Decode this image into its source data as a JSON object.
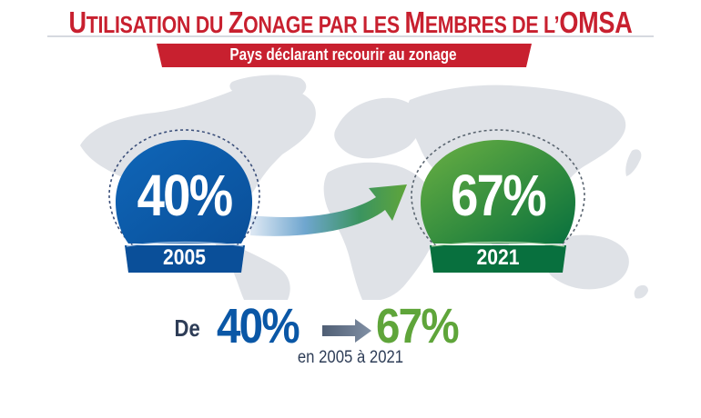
{
  "header": {
    "title_parts": [
      {
        "cap": "U",
        "rest": "TILISATION DU "
      },
      {
        "cap": "Z",
        "rest": "ONAGE PAR LES "
      },
      {
        "cap": "M",
        "rest": "EMBRES DE L’"
      },
      {
        "cap": "OMSA",
        "rest": ""
      }
    ],
    "subtitle": "Pays déclarant recourir au zonage"
  },
  "badges": [
    {
      "value": "40%",
      "year": "2005",
      "color": "#0a57a6"
    },
    {
      "value": "67%",
      "year": "2021",
      "color": "#2f8a3e"
    }
  ],
  "summary": {
    "prefix": "De",
    "from": "40%",
    "to": "67%",
    "caption": "en 2005 à 2021"
  },
  "colors": {
    "title": "#c8202f",
    "banner": "#c8202f",
    "map": "#dfe2e7",
    "blue": "#0a57a6",
    "green": "#5fa53a",
    "dark_text": "#2e3d57"
  }
}
